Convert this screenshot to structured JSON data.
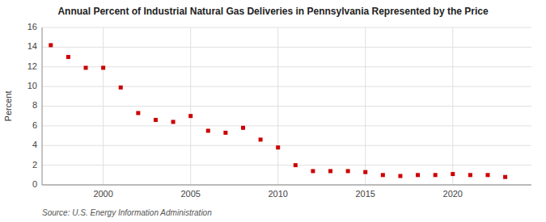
{
  "chart_data": {
    "type": "scatter",
    "title": "Annual Percent of Industrial Natural Gas Deliveries in Pennsylvania Represented by the Price",
    "y_label": "Percent",
    "source": "Source: U.S. Energy Information Administration",
    "x": [
      1997,
      1998,
      1999,
      2000,
      2001,
      2002,
      2003,
      2004,
      2005,
      2006,
      2007,
      2008,
      2009,
      2010,
      2011,
      2012,
      2013,
      2014,
      2015,
      2016,
      2017,
      2018,
      2019,
      2020,
      2021,
      2022,
      2023
    ],
    "values": [
      14.2,
      13.0,
      11.9,
      11.9,
      9.9,
      7.3,
      6.6,
      6.4,
      7.0,
      5.5,
      5.3,
      5.8,
      4.6,
      3.8,
      2.0,
      1.4,
      1.4,
      1.4,
      1.3,
      1.0,
      0.9,
      1.0,
      1.0,
      1.1,
      1.0,
      1.0,
      0.8
    ],
    "color": "#cc0000",
    "marker": "square",
    "xlim": [
      1996.5,
      2024.5
    ],
    "xticks": [
      2000,
      2005,
      2010,
      2015,
      2020
    ],
    "ylim": [
      0,
      16
    ],
    "yticks": [
      0,
      2,
      4,
      6,
      8,
      10,
      12,
      14,
      16
    ],
    "grid": true
  }
}
